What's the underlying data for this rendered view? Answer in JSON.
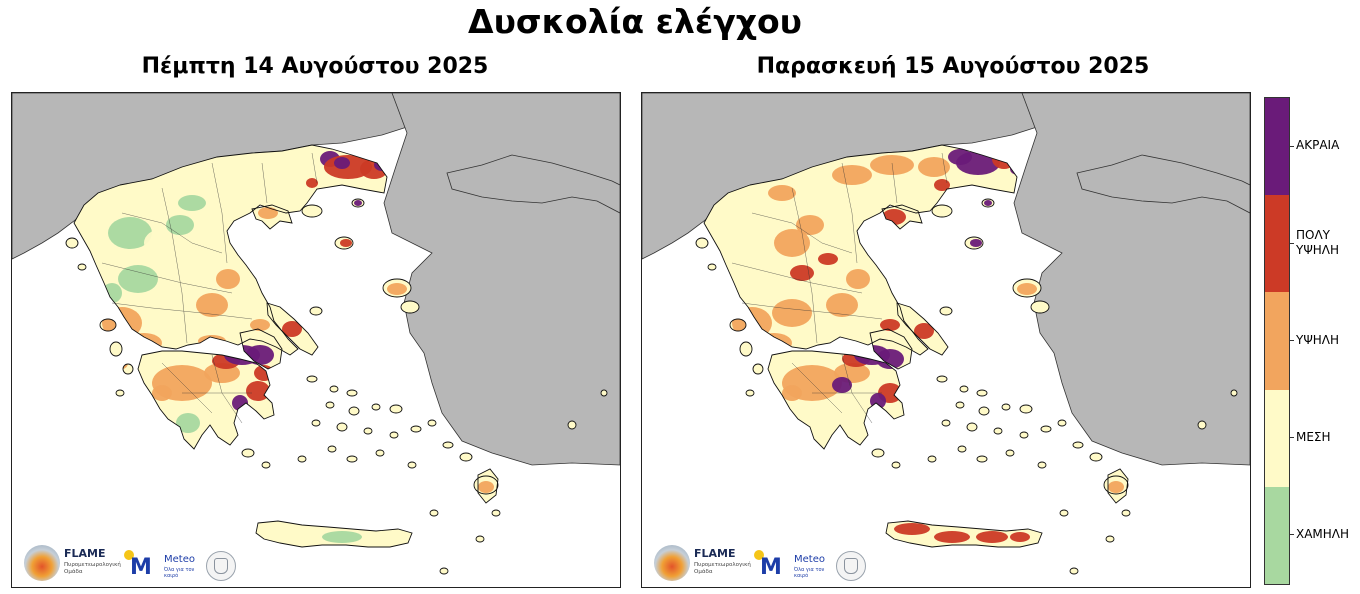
{
  "title": "Δυσκολία ελέγχου",
  "maps": [
    {
      "subtitle": "Πέμπτη 14 Αυγούστου 2025",
      "level_scheme": "day1"
    },
    {
      "subtitle": "Παρασκευή 15 Αυγούστου 2025",
      "level_scheme": "day2"
    }
  ],
  "legend": {
    "levels": [
      {
        "label": "ΑΚΡΑΙΑ",
        "color": "#6a1b79"
      },
      {
        "label": "ΠΟΛΥ\nΥΨΗΛΗ",
        "color": "#cc3a26"
      },
      {
        "label": "ΥΨΗΛΗ",
        "color": "#f2a55e"
      },
      {
        "label": "ΜΕΣΗ",
        "color": "#fffac8"
      },
      {
        "label": "ΧΑΜΗΛΗ",
        "color": "#a8d8a0"
      }
    ]
  },
  "colors": {
    "land_other": "#b7b7b7",
    "sea": "#ffffff"
  },
  "logos": {
    "flame_name": "FLAME",
    "flame_desc": "Πυρομετεωρολογική Ομάδα",
    "meteo_name": "Meteo",
    "meteo_tagline": "Όλα για τον καιρό"
  }
}
